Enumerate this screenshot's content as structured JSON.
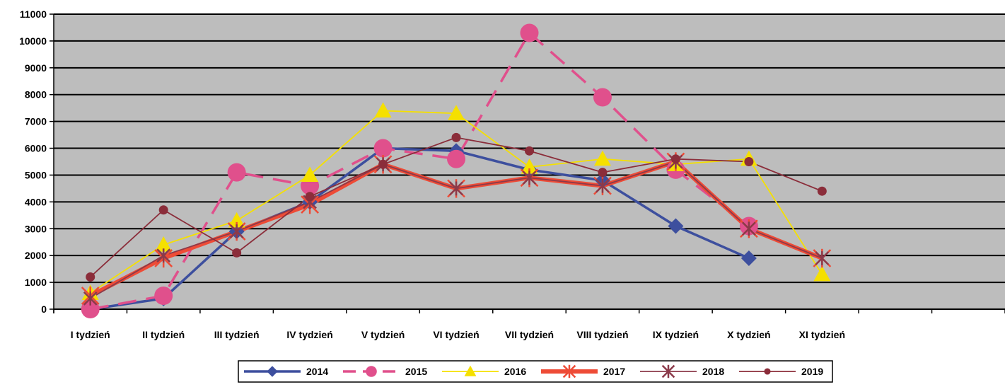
{
  "chart_data": {
    "type": "line",
    "title": "",
    "xlabel": "",
    "ylabel": "",
    "ylim": [
      0,
      11000
    ],
    "y_ticks": [
      0,
      1000,
      2000,
      3000,
      4000,
      5000,
      6000,
      7000,
      8000,
      9000,
      10000,
      11000
    ],
    "y_tick_labels": [
      "0",
      "1000",
      "2000",
      "3000",
      "4000",
      "5000",
      "6000",
      "7000",
      "8000",
      "9000",
      "10000",
      "11000"
    ],
    "categories": [
      "I tydzień",
      "II tydzień",
      "III tydzień",
      "IV tydzień",
      "V tydzień",
      "VI tydzień",
      "VII tydzień",
      "VIII tydzień",
      "IX tydzień",
      "X tydzień",
      "XI tydzień",
      "",
      ""
    ],
    "grid": true,
    "plot_background": "#bdbdbd",
    "legend_position": "bottom",
    "series": [
      {
        "name": "2014",
        "color": "#3d4f9e",
        "marker": "diamond",
        "style": "solid",
        "width": "thick",
        "values": [
          0,
          400,
          2900,
          4000,
          6000,
          5900,
          5200,
          4800,
          3100,
          1900,
          null,
          null,
          null
        ]
      },
      {
        "name": "2015",
        "color": "#e0508c",
        "marker": "circle-large",
        "style": "dashed",
        "width": "thick",
        "values": [
          0,
          500,
          5100,
          4600,
          6000,
          5600,
          10300,
          7900,
          5200,
          3100,
          null,
          null,
          null
        ]
      },
      {
        "name": "2016",
        "color": "#f5e000",
        "marker": "triangle",
        "style": "solid",
        "width": "thin",
        "values": [
          600,
          2400,
          3300,
          5000,
          7400,
          7300,
          5300,
          5600,
          5400,
          5600,
          1300,
          null,
          null
        ]
      },
      {
        "name": "2017",
        "color": "#ee4b36",
        "marker": "asterisk",
        "style": "solid",
        "width": "very-thick",
        "values": [
          500,
          1900,
          2900,
          3900,
          5400,
          4500,
          4900,
          4600,
          5500,
          3000,
          1900,
          null,
          null
        ]
      },
      {
        "name": "2018",
        "color": "#8b3a4a",
        "marker": "asterisk",
        "style": "solid",
        "width": "thin",
        "values": [
          400,
          2000,
          2900,
          4000,
          5400,
          4500,
          4900,
          4600,
          5500,
          3000,
          1900,
          null,
          null
        ]
      },
      {
        "name": "2019",
        "color": "#8b2d3a",
        "marker": "circle",
        "style": "solid",
        "width": "thin",
        "values": [
          1200,
          3700,
          2100,
          4200,
          5400,
          6400,
          5900,
          5100,
          5600,
          5500,
          4400,
          null,
          null
        ]
      }
    ]
  }
}
